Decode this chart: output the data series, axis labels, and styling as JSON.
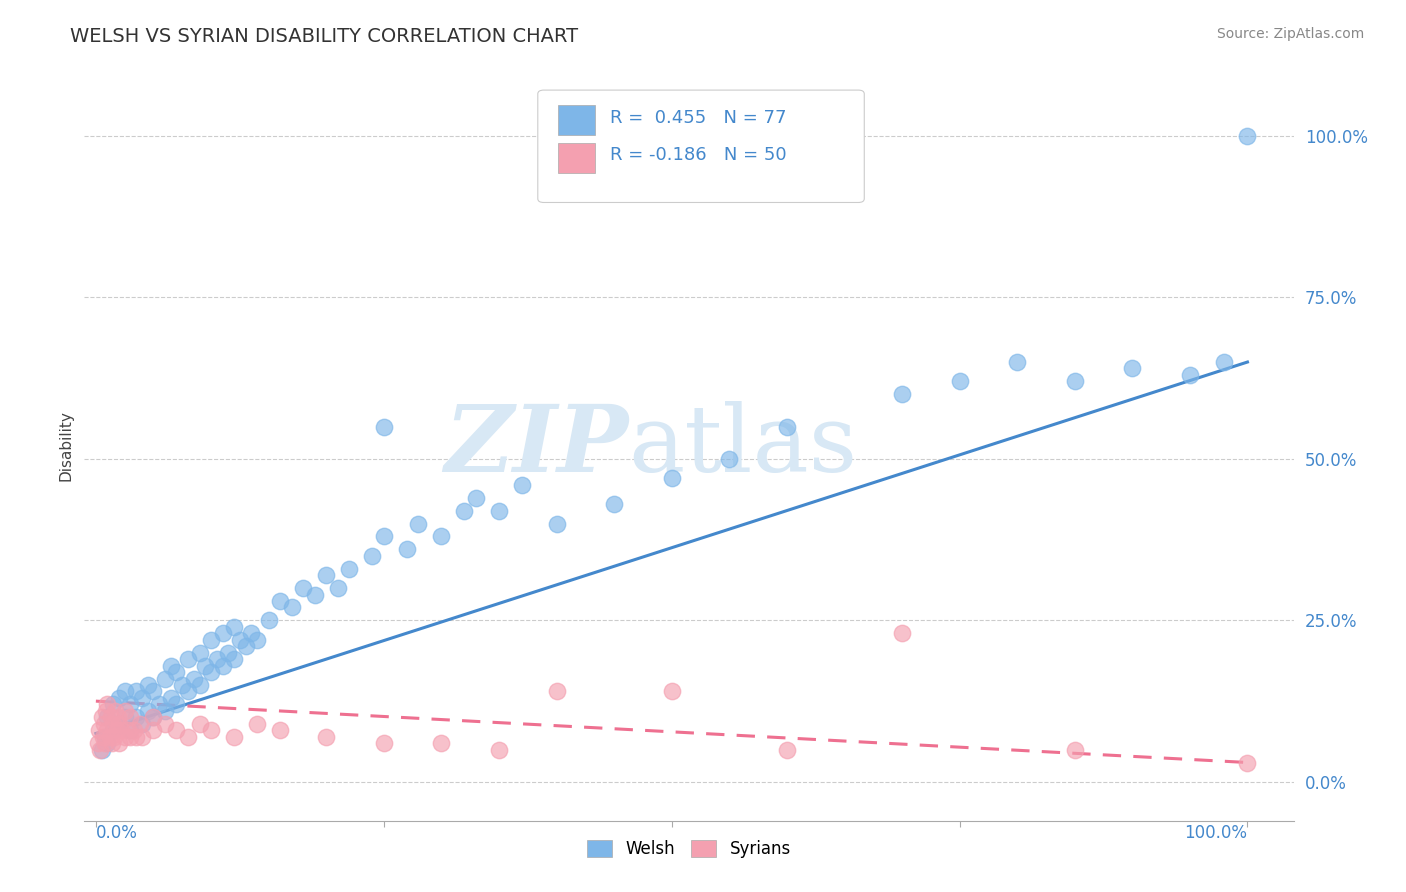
{
  "title": "WELSH VS SYRIAN DISABILITY CORRELATION CHART",
  "source": "Source: ZipAtlas.com",
  "ylabel": "Disability",
  "welsh_R": 0.455,
  "welsh_N": 77,
  "syrian_R": -0.186,
  "syrian_N": 50,
  "welsh_color": "#7EB6E8",
  "syrian_color": "#F4A0B0",
  "welsh_line_color": "#4488CC",
  "syrian_line_color": "#EE7090",
  "background_color": "#FFFFFF",
  "grid_color": "#CCCCCC",
  "watermark_zip": "ZIP",
  "watermark_atlas": "atlas",
  "watermark_color": "#D8E8F5",
  "welsh_line_x0": 0.0,
  "welsh_line_y0": 0.075,
  "welsh_line_x1": 1.0,
  "welsh_line_y1": 0.65,
  "syrian_line_x0": 0.0,
  "syrian_line_y0": 0.125,
  "syrian_line_x1": 1.0,
  "syrian_line_y1": 0.03,
  "welsh_points_x": [
    0.005,
    0.008,
    0.01,
    0.01,
    0.015,
    0.015,
    0.02,
    0.02,
    0.025,
    0.025,
    0.03,
    0.03,
    0.035,
    0.035,
    0.04,
    0.04,
    0.045,
    0.045,
    0.05,
    0.05,
    0.055,
    0.06,
    0.06,
    0.065,
    0.065,
    0.07,
    0.07,
    0.075,
    0.08,
    0.08,
    0.085,
    0.09,
    0.09,
    0.095,
    0.1,
    0.1,
    0.105,
    0.11,
    0.11,
    0.115,
    0.12,
    0.12,
    0.125,
    0.13,
    0.135,
    0.14,
    0.15,
    0.16,
    0.17,
    0.18,
    0.19,
    0.2,
    0.21,
    0.22,
    0.24,
    0.25,
    0.27,
    0.28,
    0.3,
    0.32,
    0.33,
    0.35,
    0.37,
    0.4,
    0.45,
    0.5,
    0.55,
    0.6,
    0.7,
    0.75,
    0.8,
    0.85,
    0.9,
    0.95,
    0.98,
    1.0,
    0.25
  ],
  "welsh_points_y": [
    0.05,
    0.07,
    0.06,
    0.1,
    0.08,
    0.12,
    0.09,
    0.13,
    0.1,
    0.14,
    0.08,
    0.12,
    0.1,
    0.14,
    0.09,
    0.13,
    0.11,
    0.15,
    0.1,
    0.14,
    0.12,
    0.11,
    0.16,
    0.13,
    0.18,
    0.12,
    0.17,
    0.15,
    0.14,
    0.19,
    0.16,
    0.15,
    0.2,
    0.18,
    0.17,
    0.22,
    0.19,
    0.18,
    0.23,
    0.2,
    0.19,
    0.24,
    0.22,
    0.21,
    0.23,
    0.22,
    0.25,
    0.28,
    0.27,
    0.3,
    0.29,
    0.32,
    0.3,
    0.33,
    0.35,
    0.38,
    0.36,
    0.4,
    0.38,
    0.42,
    0.44,
    0.42,
    0.46,
    0.4,
    0.43,
    0.47,
    0.5,
    0.55,
    0.6,
    0.62,
    0.65,
    0.62,
    0.64,
    0.63,
    0.65,
    1.0,
    0.55
  ],
  "syrian_points_x": [
    0.002,
    0.003,
    0.004,
    0.005,
    0.006,
    0.007,
    0.008,
    0.009,
    0.01,
    0.01,
    0.012,
    0.013,
    0.014,
    0.015,
    0.016,
    0.017,
    0.018,
    0.019,
    0.02,
    0.02,
    0.022,
    0.025,
    0.025,
    0.028,
    0.03,
    0.03,
    0.033,
    0.035,
    0.038,
    0.04,
    0.05,
    0.05,
    0.06,
    0.07,
    0.08,
    0.09,
    0.1,
    0.12,
    0.14,
    0.16,
    0.2,
    0.25,
    0.3,
    0.35,
    0.4,
    0.5,
    0.6,
    0.7,
    0.85,
    1.0
  ],
  "syrian_points_y": [
    0.06,
    0.08,
    0.05,
    0.1,
    0.07,
    0.09,
    0.06,
    0.11,
    0.08,
    0.12,
    0.07,
    0.1,
    0.06,
    0.09,
    0.07,
    0.11,
    0.08,
    0.1,
    0.06,
    0.09,
    0.08,
    0.07,
    0.11,
    0.08,
    0.07,
    0.1,
    0.08,
    0.07,
    0.09,
    0.07,
    0.08,
    0.1,
    0.09,
    0.08,
    0.07,
    0.09,
    0.08,
    0.07,
    0.09,
    0.08,
    0.07,
    0.06,
    0.06,
    0.05,
    0.14,
    0.14,
    0.05,
    0.23,
    0.05,
    0.03
  ],
  "ytick_values": [
    0.0,
    0.25,
    0.5,
    0.75,
    1.0
  ],
  "xtick_values": [
    0.0,
    0.25,
    0.5,
    0.75,
    1.0
  ],
  "xlim": [
    -0.01,
    1.04
  ],
  "ylim": [
    -0.06,
    1.1
  ]
}
